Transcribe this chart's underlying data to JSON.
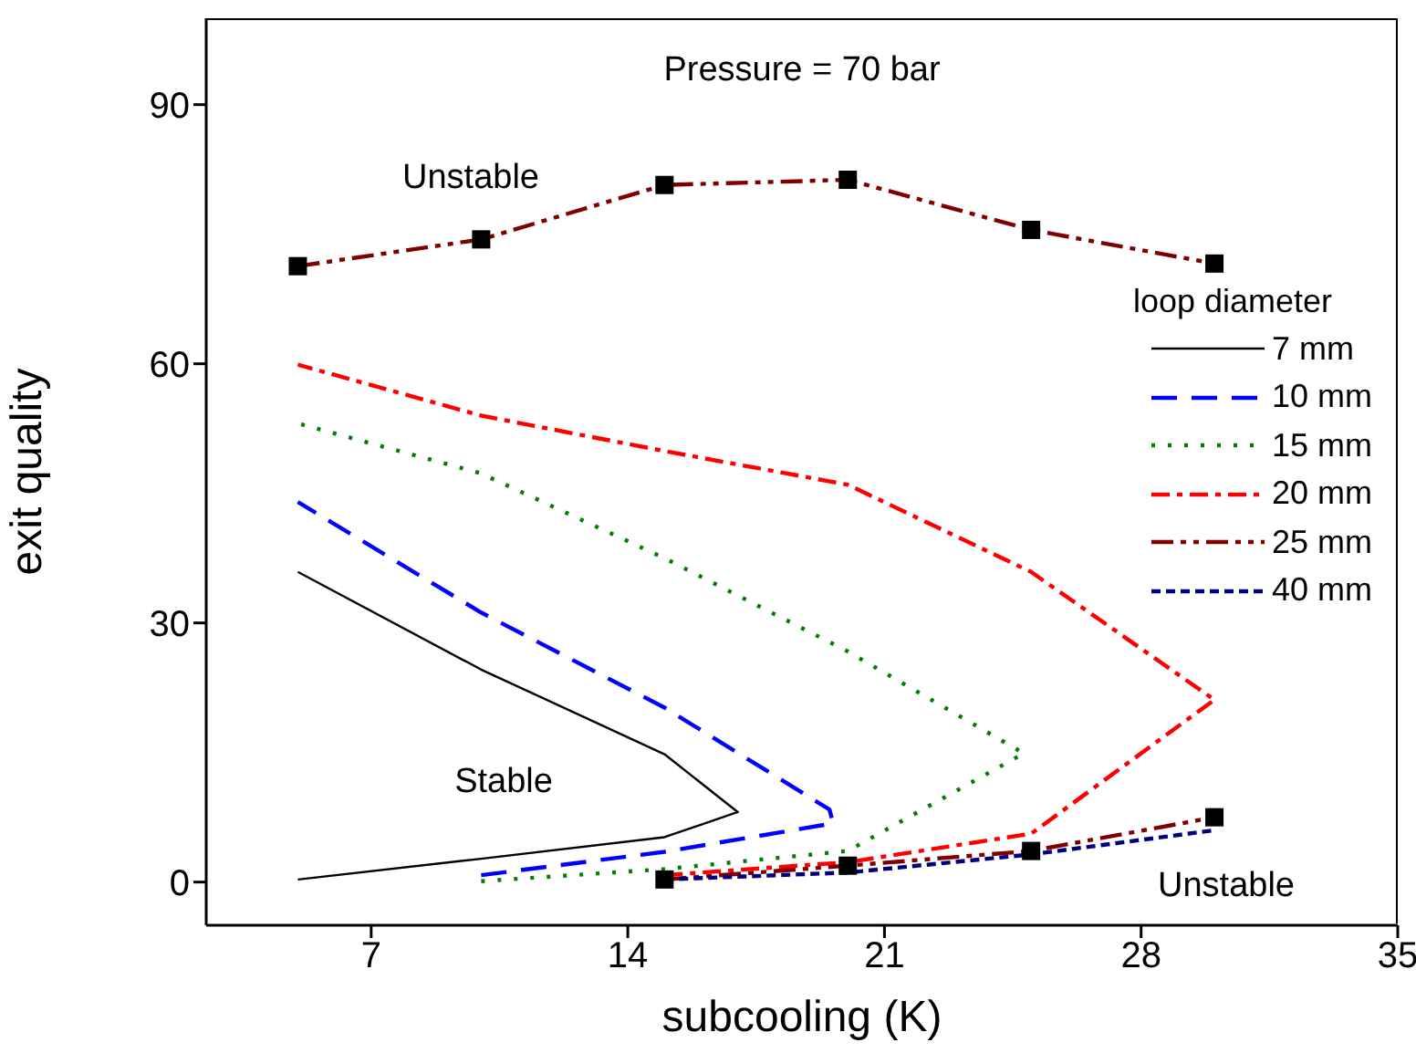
{
  "chart_data": {
    "type": "line",
    "title": "Pressure = 70 bar",
    "xlabel": "subcooling (K)",
    "ylabel": "exit quality",
    "legend_title": "loop diameter",
    "legend": "right",
    "xlim": [
      2.5,
      35
    ],
    "xticks": [
      7,
      14,
      21,
      28,
      35
    ],
    "ylim": [
      -5,
      100
    ],
    "yticks": [
      0,
      30,
      60,
      90
    ],
    "series": [
      {
        "name": "7 mm",
        "color": "#000000",
        "line_style": "solid",
        "x": [
          5,
          10,
          15,
          17,
          15,
          10,
          5
        ],
        "values": [
          0.3,
          2.7,
          5.2,
          8.1,
          14.8,
          24.6,
          35.9
        ]
      },
      {
        "name": "10 mm",
        "color": "#0000ff",
        "line_style": "dashed",
        "x": [
          10,
          15,
          19.6,
          19.5,
          15,
          10,
          5
        ],
        "values": [
          0.8,
          3.5,
          6.8,
          8.4,
          20.2,
          31.2,
          44.0
        ]
      },
      {
        "name": "15 mm",
        "color": "#008000",
        "line_style": "dotted",
        "x": [
          10,
          15,
          20,
          24.8,
          20,
          15,
          10,
          5
        ],
        "values": [
          0.1,
          1.5,
          3.6,
          14.9,
          26.7,
          37.5,
          47.3,
          53.1
        ]
      },
      {
        "name": "20 mm",
        "color": "#ff0000",
        "line_style": "dashdot",
        "x": [
          15,
          20,
          25,
          30,
          25,
          20,
          15,
          10,
          5
        ],
        "values": [
          0.8,
          2.3,
          5.6,
          21.1,
          35.9,
          46.0,
          49.9,
          54.0,
          59.9
        ]
      },
      {
        "name": "25 mm",
        "color": "#800000",
        "line_style": "dashdotdot",
        "x": [
          15,
          20,
          25,
          30,
          null,
          5,
          10,
          15,
          20,
          25,
          30
        ],
        "values": [
          0.3,
          1.9,
          3.6,
          7.5,
          null,
          71.3,
          74.4,
          80.7,
          81.3,
          75.5,
          71.6
        ]
      },
      {
        "name": "40 mm",
        "color": "#000080",
        "line_style": "shortdash",
        "x": [
          15,
          20,
          25,
          30
        ],
        "values": [
          0.3,
          1.1,
          3.2,
          6.0
        ]
      },
      {
        "type": "scatter",
        "color": "#000000",
        "marker": "square",
        "x": [
          15,
          20,
          25,
          30,
          5,
          10,
          15,
          20,
          25,
          30
        ],
        "values": [
          0.3,
          1.9,
          3.6,
          7.5,
          71.3,
          74.4,
          80.7,
          81.3,
          75.5,
          71.6
        ]
      }
    ],
    "annotations": [
      "Unstable",
      "Stable",
      "Unstable"
    ]
  }
}
